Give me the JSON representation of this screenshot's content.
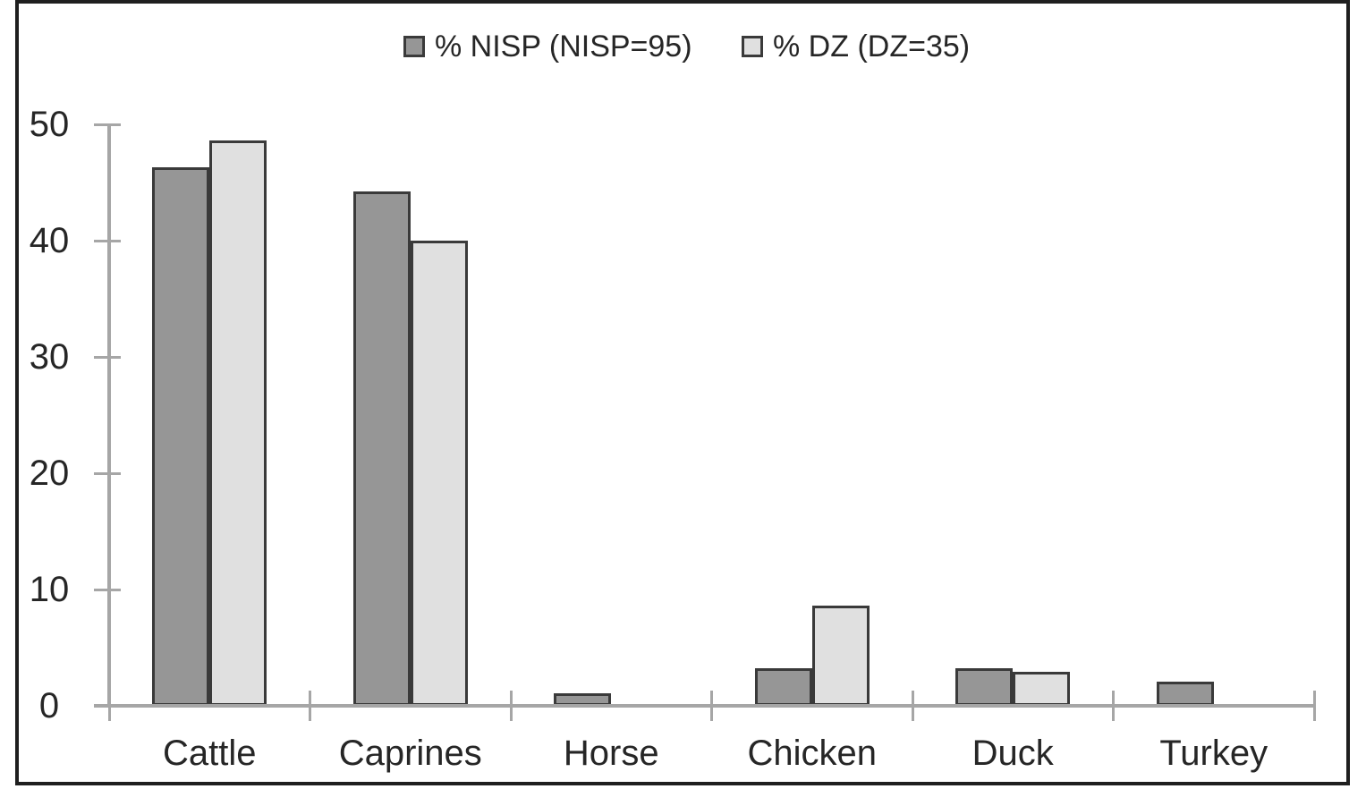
{
  "figure": {
    "background_color": "#FFFFFF",
    "frame_border_color": "#1F1F1F",
    "axis_color": "#A6A6A6",
    "text_color": "#262626",
    "bar_border_color": "#3A3A3A"
  },
  "chart_data": {
    "type": "bar",
    "title": "",
    "xlabel": "",
    "ylabel": "",
    "categories": [
      "Cattle",
      "Caprines",
      "Horse",
      "Chicken",
      "Duck",
      "Turkey"
    ],
    "series": [
      {
        "name": "% NISP (NISP=95)",
        "color": "#969696",
        "values": [
          46.3,
          44.2,
          1.1,
          3.2,
          3.2,
          2.1
        ]
      },
      {
        "name": "% DZ (DZ=35)",
        "color": "#E0E0E0",
        "values": [
          48.6,
          40.0,
          0,
          8.6,
          2.9,
          0
        ]
      }
    ],
    "ylim": [
      0,
      50
    ],
    "yticks": [
      0,
      10,
      20,
      30,
      40,
      50
    ],
    "grid": false,
    "legend_position": "top-center",
    "bar_style": "grouped, outlined, grayscale"
  }
}
